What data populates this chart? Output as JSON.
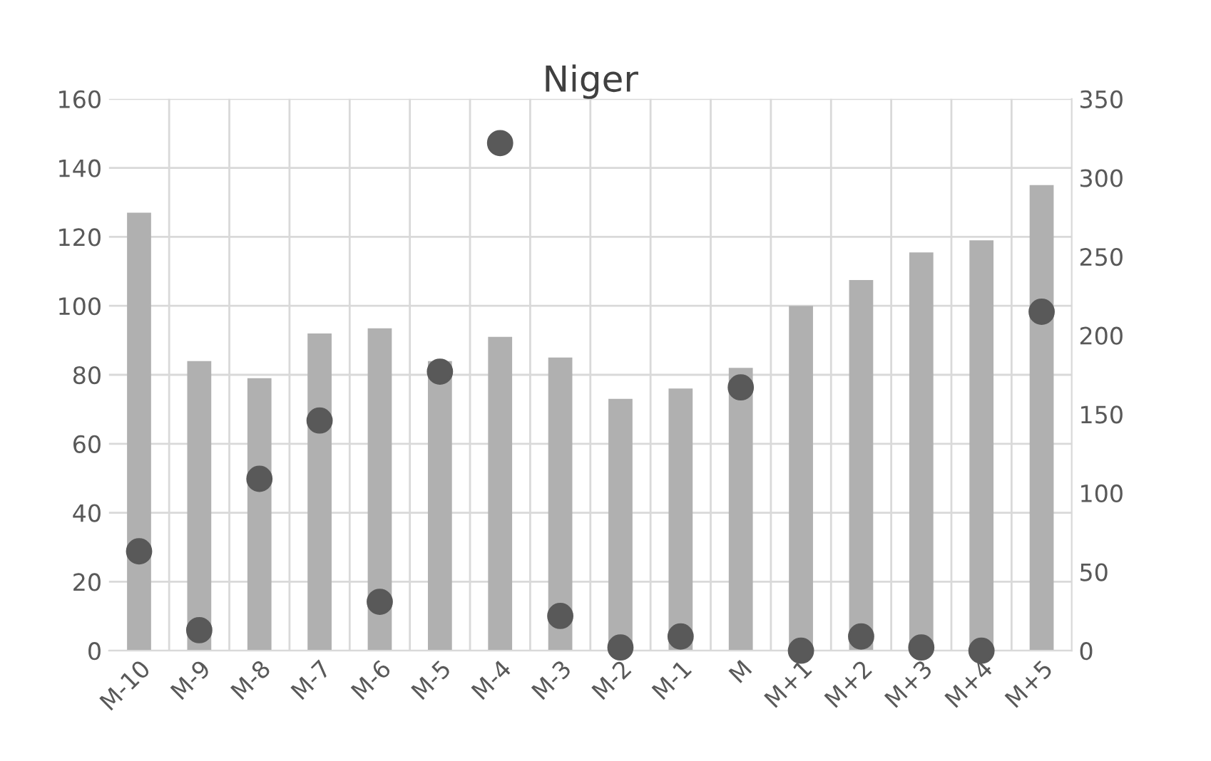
{
  "chart_data": {
    "type": "bar",
    "title": "Niger",
    "categories": [
      "M-10",
      "M-9",
      "M-8",
      "M-7",
      "M-6",
      "M-5",
      "M-4",
      "M-3",
      "M-2",
      "M-1",
      "M",
      "M+1",
      "M+2",
      "M+3",
      "M+4",
      "M+5"
    ],
    "series": [
      {
        "color": "#b0b0b0",
        "values": [
          127,
          84,
          79,
          92,
          93.5,
          84,
          91,
          85,
          73,
          76,
          82,
          100,
          107.5,
          115.5,
          119,
          135
        ]
      },
      {
        "type": "scatter",
        "axis": "y2",
        "color": "#595959",
        "values": [
          63,
          13,
          109,
          146,
          31,
          177,
          322,
          22,
          2,
          9,
          167,
          0,
          9,
          2,
          0,
          215
        ]
      }
    ],
    "ylim": [
      0,
      160
    ],
    "yticks": [
      0,
      20,
      40,
      60,
      80,
      100,
      120,
      140,
      160
    ],
    "y2lim": [
      0,
      350
    ],
    "y2ticks": [
      0,
      50,
      100,
      150,
      200,
      250,
      300,
      350
    ],
    "grid": true,
    "marker": "circle"
  }
}
